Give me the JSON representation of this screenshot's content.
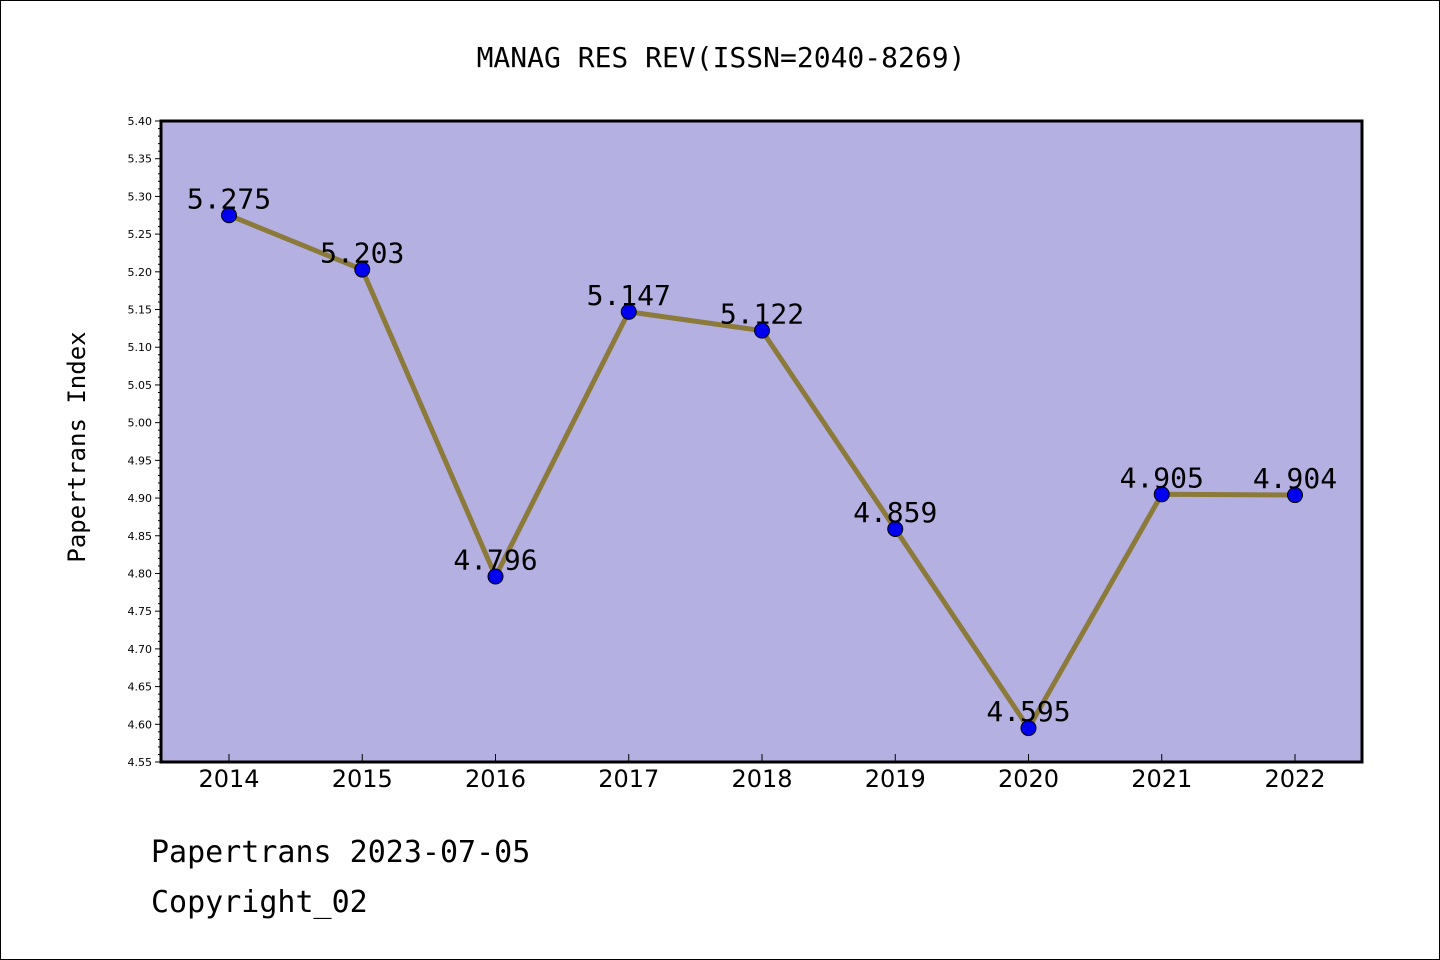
{
  "chart_data": {
    "type": "line",
    "title": "MANAG RES REV(ISSN=2040-8269)",
    "xlabel": "",
    "ylabel": "Papertrans Index",
    "categories": [
      "2014",
      "2015",
      "2016",
      "2017",
      "2018",
      "2019",
      "2020",
      "2021",
      "2022"
    ],
    "series": [
      {
        "values": [
          5.275,
          5.203,
          4.796,
          5.147,
          5.122,
          4.859,
          4.595,
          4.905,
          4.904
        ]
      }
    ],
    "data_labels": [
      "5.275",
      "5.203",
      "4.796",
      "5.147",
      "5.122",
      "4.859",
      "4.595",
      "4.905",
      "4.904"
    ],
    "ylim": [
      4.55,
      5.4
    ],
    "ytick_step": 0.05,
    "grid": false,
    "legend": "none",
    "colors": {
      "plot_background": "#b5b0e2",
      "line": "#8b7a3a",
      "marker": "#0000ee"
    }
  },
  "footer": {
    "date_line": "Papertrans 2023-07-05",
    "copyright_line": "Copyright_02"
  }
}
